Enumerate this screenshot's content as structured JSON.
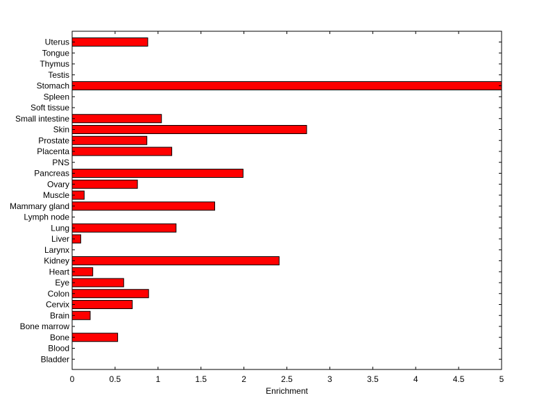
{
  "chart_data": {
    "type": "bar",
    "orientation": "horizontal",
    "title": "",
    "xlabel": "Enrichment",
    "ylabel": "",
    "xlim": [
      0,
      5
    ],
    "x_ticks": [
      "0",
      "0.5",
      "1",
      "1.5",
      "2",
      "2.5",
      "3",
      "3.5",
      "4",
      "4.5",
      "5"
    ],
    "grid": false,
    "legend": "none",
    "bar_color": "#ff0000",
    "categories": [
      "Uterus",
      "Tongue",
      "Thymus",
      "Testis",
      "Stomach",
      "Spleen",
      "Soft tissue",
      "Small intestine",
      "Skin",
      "Prostate",
      "Placenta",
      "PNS",
      "Pancreas",
      "Ovary",
      "Muscle",
      "Mammary gland",
      "Lymph node",
      "Lung",
      "Liver",
      "Larynx",
      "Kidney",
      "Heart",
      "Eye",
      "Colon",
      "Cervix",
      "Brain",
      "Bone marrow",
      "Bone",
      "Blood",
      "Bladder"
    ],
    "values": [
      0.88,
      0,
      0,
      0,
      5.0,
      0,
      0,
      1.04,
      2.73,
      0.87,
      1.16,
      0,
      1.99,
      0.76,
      0.14,
      1.66,
      0,
      1.21,
      0.1,
      0,
      2.41,
      0.24,
      0.6,
      0.89,
      0.7,
      0.21,
      0,
      0.53,
      0,
      0
    ]
  }
}
